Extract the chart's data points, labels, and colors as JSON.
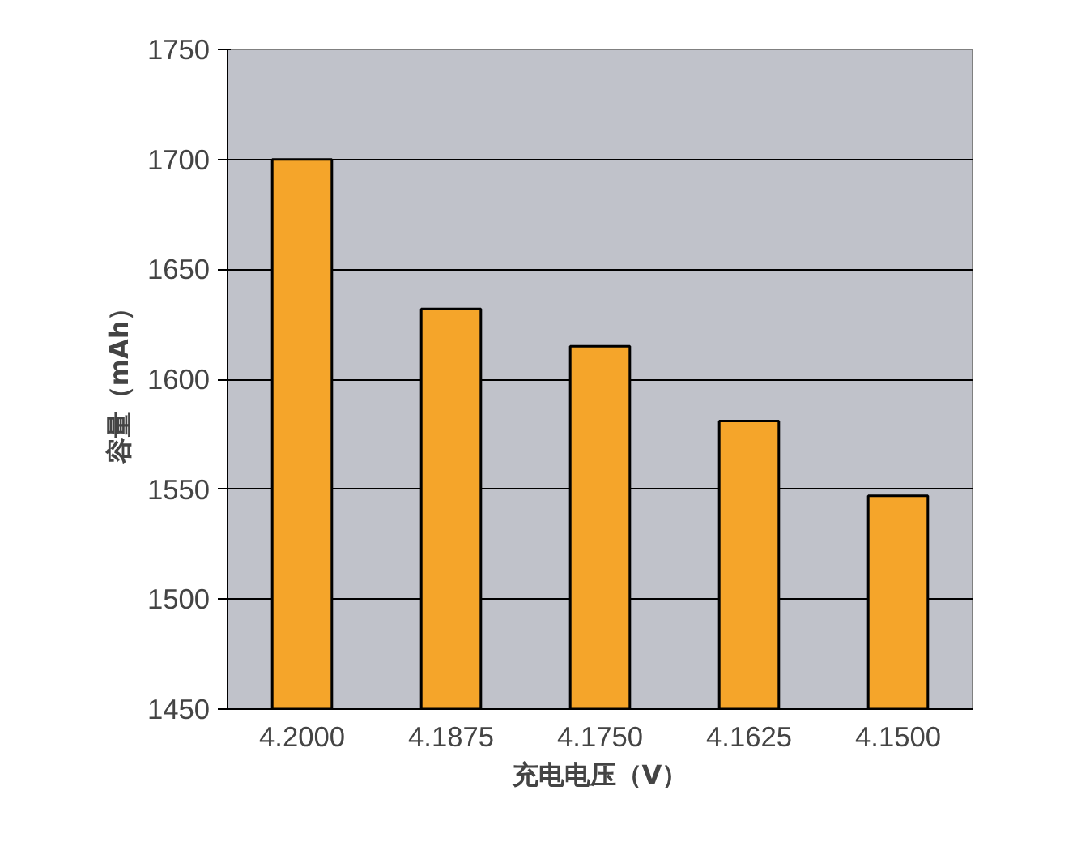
{
  "chart_data": {
    "type": "bar",
    "xlabel": "充电电压（V）",
    "ylabel": "容量（mAh）",
    "categories": [
      "4.2000",
      "4.1875",
      "4.1750",
      "4.1625",
      "4.1500"
    ],
    "values": [
      1700,
      1632,
      1615,
      1581,
      1547
    ],
    "color": "#f5a52a",
    "ylim": [
      1450,
      1750
    ],
    "yticks": [
      1450,
      1500,
      1550,
      1600,
      1650,
      1700,
      1750
    ],
    "grid": "y"
  }
}
